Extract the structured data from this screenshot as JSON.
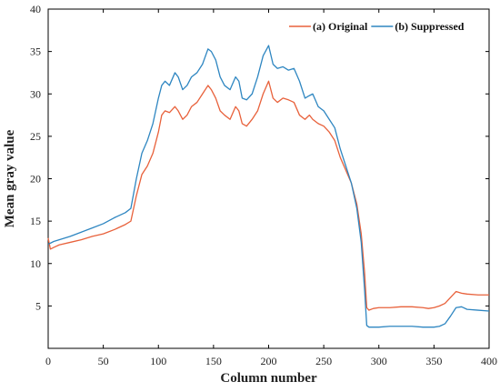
{
  "chart_data": {
    "type": "line",
    "title": "",
    "xlabel": "Column number",
    "ylabel": "Mean gray value",
    "xlim": [
      0,
      400
    ],
    "ylim": [
      0,
      40
    ],
    "xticks": [
      0,
      50,
      100,
      150,
      200,
      250,
      300,
      350,
      400
    ],
    "yticks": [
      5,
      10,
      15,
      20,
      25,
      30,
      35,
      40
    ],
    "grid": false,
    "legend_position": "top-right",
    "series": [
      {
        "name": "(a) Original",
        "color": "#E8613B",
        "x": [
          0,
          2,
          5,
          10,
          20,
          30,
          40,
          50,
          60,
          70,
          75,
          80,
          85,
          90,
          95,
          100,
          103,
          106,
          110,
          115,
          118,
          122,
          126,
          130,
          135,
          140,
          145,
          148,
          152,
          156,
          160,
          165,
          170,
          173,
          176,
          180,
          185,
          190,
          195,
          200,
          204,
          208,
          213,
          218,
          223,
          228,
          233,
          237,
          240,
          245,
          250,
          255,
          260,
          265,
          270,
          275,
          280,
          284,
          287,
          289,
          291,
          295,
          300,
          310,
          320,
          330,
          340,
          345,
          350,
          355,
          360,
          365,
          370,
          375,
          380,
          390,
          400
        ],
        "y": [
          13.0,
          11.7,
          11.9,
          12.2,
          12.5,
          12.8,
          13.2,
          13.5,
          14.0,
          14.6,
          15.0,
          18.0,
          20.5,
          21.5,
          23.0,
          25.5,
          27.5,
          28.0,
          27.8,
          28.5,
          28.0,
          27.0,
          27.5,
          28.5,
          29.0,
          30.0,
          31.0,
          30.5,
          29.5,
          28.0,
          27.5,
          27.0,
          28.5,
          28.0,
          26.5,
          26.2,
          27.0,
          28.0,
          30.0,
          31.5,
          29.5,
          29.0,
          29.5,
          29.3,
          29.0,
          27.5,
          27.0,
          27.5,
          27.0,
          26.5,
          26.2,
          25.5,
          24.5,
          22.5,
          21.0,
          19.5,
          17.0,
          13.5,
          9.0,
          4.8,
          4.5,
          4.7,
          4.8,
          4.8,
          4.9,
          4.9,
          4.8,
          4.7,
          4.8,
          5.0,
          5.3,
          6.0,
          6.7,
          6.5,
          6.4,
          6.3,
          6.3
        ]
      },
      {
        "name": "(b) Suppressed",
        "color": "#2E86C1",
        "x": [
          0,
          2,
          5,
          10,
          20,
          30,
          40,
          50,
          60,
          70,
          75,
          80,
          85,
          90,
          95,
          100,
          103,
          106,
          110,
          115,
          118,
          122,
          126,
          130,
          135,
          140,
          145,
          148,
          152,
          156,
          160,
          165,
          170,
          173,
          176,
          180,
          185,
          190,
          195,
          200,
          204,
          208,
          213,
          218,
          223,
          228,
          233,
          237,
          240,
          245,
          250,
          255,
          260,
          265,
          270,
          275,
          280,
          284,
          287,
          289,
          291,
          295,
          300,
          310,
          320,
          330,
          340,
          345,
          350,
          355,
          360,
          365,
          370,
          375,
          380,
          390,
          400
        ],
        "y": [
          12.3,
          12.4,
          12.6,
          12.8,
          13.2,
          13.7,
          14.2,
          14.7,
          15.4,
          16.0,
          16.5,
          20.0,
          23.0,
          24.5,
          26.5,
          29.5,
          31.0,
          31.5,
          31.0,
          32.5,
          32.0,
          30.5,
          31.0,
          32.0,
          32.5,
          33.5,
          35.3,
          35.0,
          34.0,
          32.0,
          31.0,
          30.5,
          32.0,
          31.5,
          29.5,
          29.3,
          30.0,
          32.0,
          34.5,
          35.7,
          33.5,
          33.0,
          33.2,
          32.8,
          33.0,
          31.5,
          29.5,
          29.8,
          30.0,
          28.5,
          28.0,
          27.0,
          26.0,
          23.5,
          21.5,
          19.5,
          16.5,
          12.5,
          7.0,
          2.7,
          2.5,
          2.5,
          2.5,
          2.6,
          2.6,
          2.6,
          2.5,
          2.5,
          2.5,
          2.6,
          2.9,
          3.8,
          4.8,
          4.9,
          4.6,
          4.5,
          4.4
        ]
      }
    ]
  }
}
